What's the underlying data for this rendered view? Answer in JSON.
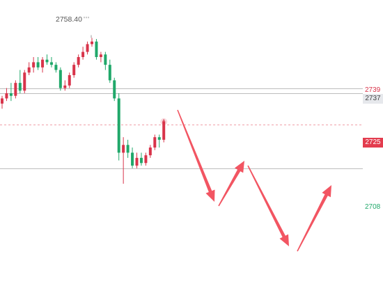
{
  "high_marker": {
    "label": "2758.40"
  },
  "price_axis": {
    "tags": [
      {
        "name": "level-2739",
        "label": "2739",
        "style": "plain-red"
      },
      {
        "name": "level-2737",
        "label": "2737",
        "style": "gray-box"
      },
      {
        "name": "level-2725",
        "label": "2725",
        "style": "red-box"
      },
      {
        "name": "level-2708",
        "label": "2708",
        "style": "plain-green"
      }
    ]
  },
  "colors": {
    "up": "#d8344a",
    "down": "#20a86a",
    "arrow": "#f25562",
    "gray_line": "#bdbdbd",
    "red_dash": "#f0a0a8",
    "red_tag_bg": "#e33c4e",
    "gray_tag_bg": "#e6e8ec",
    "green_text": "#20a86a"
  },
  "chart_data": {
    "type": "candlestick",
    "y_range": [
      2695,
      2765
    ],
    "high_label_value": 2758.4,
    "horizontal_levels": [
      {
        "value": 2739,
        "style": "gray-solid"
      },
      {
        "value": 2737,
        "style": "gray-solid"
      },
      {
        "value": 2725,
        "style": "red-dashed"
      },
      {
        "value": 2708,
        "style": "gray-solid"
      }
    ],
    "candles": [
      {
        "o": 2733,
        "h": 2736,
        "l": 2731,
        "c": 2735
      },
      {
        "o": 2735,
        "h": 2739,
        "l": 2734,
        "c": 2737
      },
      {
        "o": 2737,
        "h": 2741,
        "l": 2734,
        "c": 2736
      },
      {
        "o": 2736,
        "h": 2742,
        "l": 2735,
        "c": 2741
      },
      {
        "o": 2741,
        "h": 2746,
        "l": 2737,
        "c": 2738
      },
      {
        "o": 2738,
        "h": 2746,
        "l": 2737,
        "c": 2745
      },
      {
        "o": 2745,
        "h": 2749,
        "l": 2744,
        "c": 2747
      },
      {
        "o": 2747,
        "h": 2751,
        "l": 2745,
        "c": 2749
      },
      {
        "o": 2749,
        "h": 2751,
        "l": 2746,
        "c": 2747
      },
      {
        "o": 2747,
        "h": 2751,
        "l": 2745,
        "c": 2750
      },
      {
        "o": 2750,
        "h": 2752,
        "l": 2748,
        "c": 2749
      },
      {
        "o": 2749,
        "h": 2751,
        "l": 2747,
        "c": 2748
      },
      {
        "o": 2748,
        "h": 2749,
        "l": 2745,
        "c": 2746
      },
      {
        "o": 2746,
        "h": 2747,
        "l": 2738,
        "c": 2739
      },
      {
        "o": 2739,
        "h": 2742,
        "l": 2738,
        "c": 2740
      },
      {
        "o": 2740,
        "h": 2745,
        "l": 2739,
        "c": 2744
      },
      {
        "o": 2744,
        "h": 2749,
        "l": 2743,
        "c": 2748
      },
      {
        "o": 2748,
        "h": 2752,
        "l": 2747,
        "c": 2751
      },
      {
        "o": 2751,
        "h": 2755,
        "l": 2750,
        "c": 2753
      },
      {
        "o": 2753,
        "h": 2757,
        "l": 2752,
        "c": 2756
      },
      {
        "o": 2756,
        "h": 2758.4,
        "l": 2755,
        "c": 2757
      },
      {
        "o": 2757,
        "h": 2758,
        "l": 2750,
        "c": 2751
      },
      {
        "o": 2751,
        "h": 2753,
        "l": 2749,
        "c": 2752
      },
      {
        "o": 2752,
        "h": 2753,
        "l": 2746,
        "c": 2748
      },
      {
        "o": 2748,
        "h": 2750,
        "l": 2741,
        "c": 2742
      },
      {
        "o": 2742,
        "h": 2743,
        "l": 2734,
        "c": 2735
      },
      {
        "o": 2735,
        "h": 2737,
        "l": 2711,
        "c": 2714
      },
      {
        "o": 2714,
        "h": 2720,
        "l": 2702,
        "c": 2717
      },
      {
        "o": 2717,
        "h": 2719,
        "l": 2712,
        "c": 2714
      },
      {
        "o": 2714,
        "h": 2716,
        "l": 2708,
        "c": 2709
      },
      {
        "o": 2709,
        "h": 2714,
        "l": 2708,
        "c": 2712
      },
      {
        "o": 2712,
        "h": 2714,
        "l": 2709,
        "c": 2710
      },
      {
        "o": 2710,
        "h": 2714,
        "l": 2709,
        "c": 2713
      },
      {
        "o": 2713,
        "h": 2717,
        "l": 2712,
        "c": 2716
      },
      {
        "o": 2716,
        "h": 2721,
        "l": 2715,
        "c": 2720
      },
      {
        "o": 2720,
        "h": 2721,
        "l": 2716,
        "c": 2719
      },
      {
        "o": 2719,
        "h": 2727,
        "l": 2718,
        "c": 2726
      }
    ],
    "forecast_arrows": [
      {
        "direction": "down"
      },
      {
        "direction": "up"
      },
      {
        "direction": "down"
      },
      {
        "direction": "up"
      }
    ]
  }
}
